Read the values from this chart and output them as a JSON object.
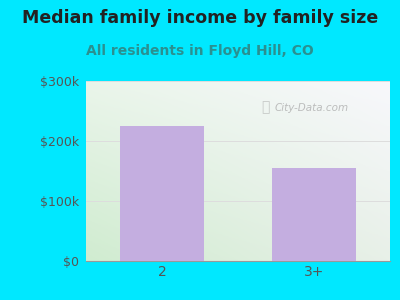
{
  "categories": [
    "2",
    "3+"
  ],
  "values": [
    225000,
    155000
  ],
  "bar_color": "#c4aee0",
  "bg_color": "#00e8ff",
  "title": "Median family income by family size",
  "subtitle": "All residents in Floyd Hill, CO",
  "title_fontsize": 12.5,
  "subtitle_fontsize": 10,
  "title_color": "#222222",
  "subtitle_color": "#2a9090",
  "ytick_labels": [
    "$0",
    "$100k",
    "$200k",
    "$300k"
  ],
  "ytick_values": [
    0,
    100000,
    200000,
    300000
  ],
  "ylim": [
    0,
    300000
  ],
  "tick_color": "#555555",
  "grid_color": "#dddddd",
  "watermark": "City-Data.com",
  "watermark_color": "#aaaaaa",
  "plot_bg_colors": [
    "#d8eed8",
    "#f5faf5",
    "#f0f0f8",
    "#fafafa"
  ],
  "border_color": "#00e8ff"
}
